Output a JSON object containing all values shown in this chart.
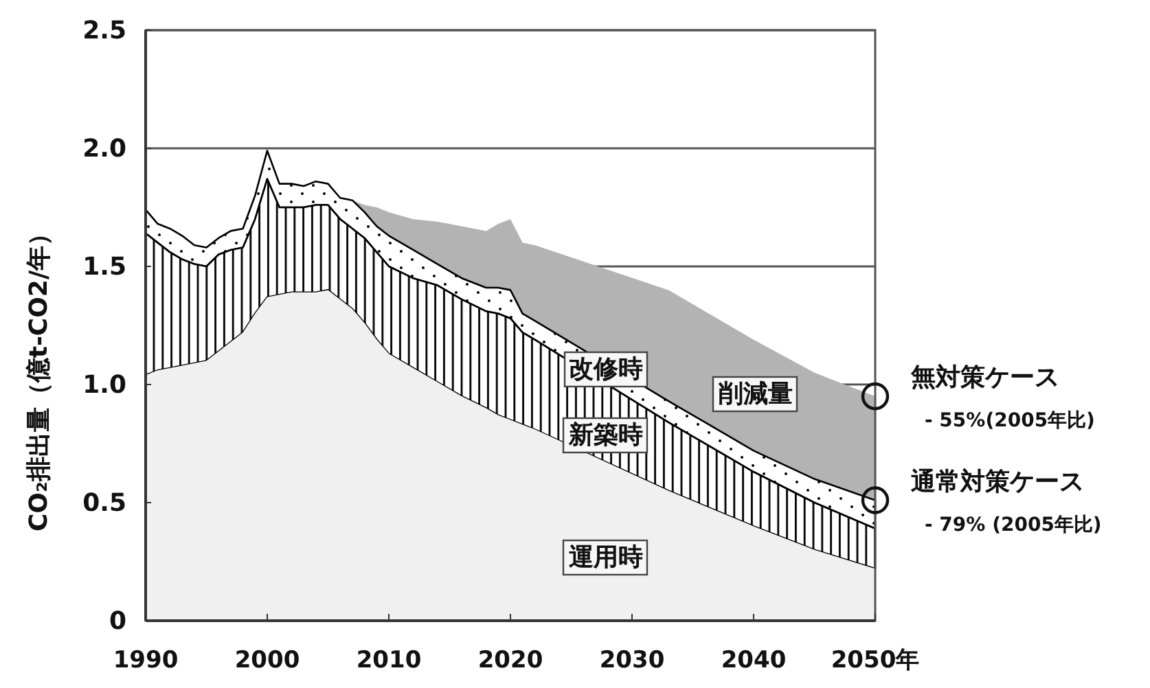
{
  "chart_data": {
    "type": "area",
    "stacked": true,
    "ylabel": "CO₂排出量（億t-CO2/年）",
    "x": [
      1990,
      1991,
      1992,
      1993,
      1994,
      1995,
      1996,
      1997,
      1998,
      1999,
      2000,
      2001,
      2002,
      2003,
      2004,
      2005,
      2006,
      2007,
      2008,
      2009,
      2010,
      2012,
      2014,
      2016,
      2018,
      2019,
      2020,
      2021,
      2022,
      2033,
      2040,
      2045,
      2050
    ],
    "series": [
      {
        "name": "運用時",
        "color": "#f0f0f0",
        "values": [
          1.04,
          1.06,
          1.07,
          1.08,
          1.09,
          1.1,
          1.14,
          1.18,
          1.22,
          1.3,
          1.37,
          1.38,
          1.39,
          1.39,
          1.39,
          1.4,
          1.36,
          1.32,
          1.26,
          1.19,
          1.13,
          1.07,
          1.01,
          0.95,
          0.9,
          0.87,
          0.85,
          0.83,
          0.81,
          0.55,
          0.4,
          0.3,
          0.22
        ]
      },
      {
        "name": "新築時",
        "color": "#000000",
        "values": [
          0.6,
          0.54,
          0.49,
          0.45,
          0.42,
          0.4,
          0.41,
          0.39,
          0.36,
          0.4,
          0.5,
          0.37,
          0.36,
          0.36,
          0.37,
          0.36,
          0.34,
          0.34,
          0.36,
          0.37,
          0.37,
          0.38,
          0.41,
          0.41,
          0.41,
          0.43,
          0.43,
          0.39,
          0.38,
          0.29,
          0.23,
          0.2,
          0.17
        ]
      },
      {
        "name": "改修時",
        "color": "#000000",
        "values": [
          0.1,
          0.08,
          0.1,
          0.1,
          0.08,
          0.08,
          0.07,
          0.08,
          0.08,
          0.1,
          0.12,
          0.1,
          0.1,
          0.09,
          0.1,
          0.09,
          0.09,
          0.12,
          0.11,
          0.11,
          0.13,
          0.12,
          0.09,
          0.09,
          0.1,
          0.11,
          0.12,
          0.08,
          0.08,
          0.09,
          0.09,
          0.1,
          0.12
        ]
      },
      {
        "name": "削減量",
        "color": "#b3b3b3",
        "values": [
          null,
          null,
          null,
          null,
          null,
          null,
          null,
          null,
          null,
          null,
          null,
          null,
          null,
          null,
          null,
          null,
          null,
          0,
          0.03,
          0.08,
          0.1,
          0.13,
          0.18,
          0.22,
          0.24,
          0.27,
          0.3,
          0.3,
          0.32,
          0.47,
          0.47,
          0.45,
          0.44
        ]
      }
    ],
    "xlim": [
      1990,
      2050
    ],
    "xticks": [
      1990,
      2000,
      2010,
      2020,
      2030,
      2040,
      {
        "value": 2050,
        "label": "2050年"
      }
    ],
    "ylim": [
      0,
      2.5
    ],
    "yticks": [
      0,
      0.5,
      {
        "value": 1,
        "label": "1.0"
      },
      1.5,
      {
        "value": 2,
        "label": "2.0"
      },
      2.5
    ],
    "grid": "y",
    "annotations": [
      {
        "text": "無対策ケース\n- 55%(2005年比)",
        "x": 2050,
        "y": 0.95
      },
      {
        "text": "通常対策ケース\n- 79% (2005年比)",
        "x": 2050,
        "y": 0.51
      }
    ]
  }
}
